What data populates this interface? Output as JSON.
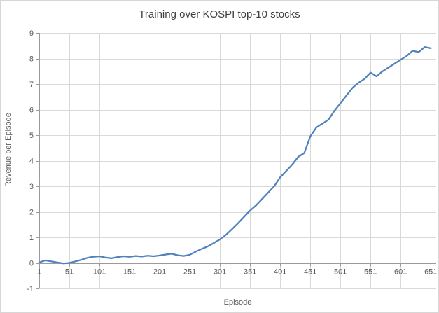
{
  "chart_data": {
    "type": "line",
    "title": "Training over KOSPI top-10 stocks",
    "xlabel": "Episode",
    "ylabel": "Revenue per Episode",
    "xlim": [
      1,
      660
    ],
    "ylim": [
      -1,
      9
    ],
    "xticks": [
      1,
      51,
      101,
      151,
      201,
      251,
      301,
      351,
      401,
      451,
      501,
      551,
      601,
      651
    ],
    "yticks": [
      -1,
      0,
      1,
      2,
      3,
      4,
      5,
      6,
      7,
      8,
      9
    ],
    "grid": true,
    "legend": false,
    "series": [
      {
        "name": "Revenue per Episode",
        "x": [
          1,
          11,
          21,
          31,
          41,
          51,
          61,
          71,
          81,
          91,
          101,
          111,
          121,
          131,
          141,
          151,
          161,
          171,
          181,
          191,
          201,
          211,
          221,
          231,
          241,
          251,
          261,
          271,
          281,
          291,
          301,
          311,
          321,
          331,
          341,
          351,
          361,
          371,
          381,
          391,
          401,
          411,
          421,
          431,
          441,
          451,
          461,
          471,
          481,
          491,
          501,
          511,
          521,
          531,
          541,
          551,
          561,
          571,
          581,
          591,
          601,
          611,
          621,
          631,
          641,
          651
        ],
        "y": [
          0.02,
          0.1,
          0.06,
          0.02,
          -0.02,
          0.0,
          0.06,
          0.12,
          0.2,
          0.24,
          0.26,
          0.21,
          0.18,
          0.23,
          0.26,
          0.24,
          0.27,
          0.25,
          0.28,
          0.26,
          0.29,
          0.33,
          0.36,
          0.3,
          0.27,
          0.32,
          0.44,
          0.55,
          0.65,
          0.78,
          0.92,
          1.1,
          1.32,
          1.55,
          1.8,
          2.05,
          2.25,
          2.5,
          2.75,
          3.0,
          3.35,
          3.6,
          3.85,
          4.15,
          4.3,
          4.95,
          5.3,
          5.45,
          5.6,
          5.95,
          6.25,
          6.55,
          6.85,
          7.05,
          7.2,
          7.45,
          7.3,
          7.5,
          7.65,
          7.8,
          7.95,
          8.1,
          8.3,
          8.25,
          8.45,
          8.4
        ]
      }
    ],
    "colors": {
      "line": "#4f81bd",
      "gridline": "#d9d9d9",
      "axis": "#9b9b9b",
      "tick_label": "#595959",
      "title": "#404040"
    }
  }
}
